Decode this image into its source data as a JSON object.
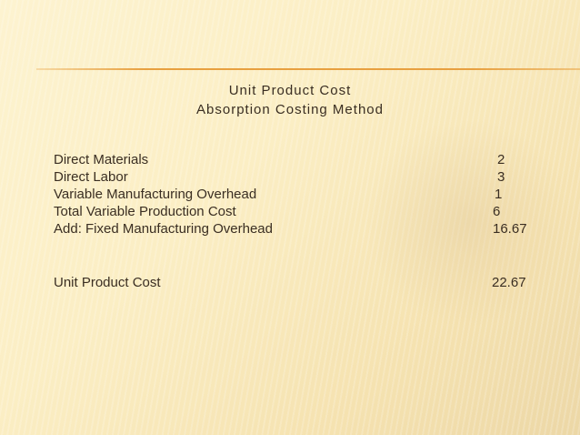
{
  "slide": {
    "title_line1": "Unit Product Cost",
    "title_line2": "Absorption Costing Method",
    "rows": [
      {
        "label": "Direct Materials",
        "value": "2"
      },
      {
        "label": "Direct Labor",
        "value": "3"
      },
      {
        "label": "Variable Manufacturing Overhead",
        "value": "1"
      },
      {
        "label": "Total Variable Production Cost",
        "value": "6"
      },
      {
        "label": "Add: Fixed Manufacturing Overhead",
        "value": "16.67"
      }
    ],
    "total": {
      "label": "Unit Product Cost",
      "value": "22.67"
    },
    "accent_color": "#e8a040"
  }
}
